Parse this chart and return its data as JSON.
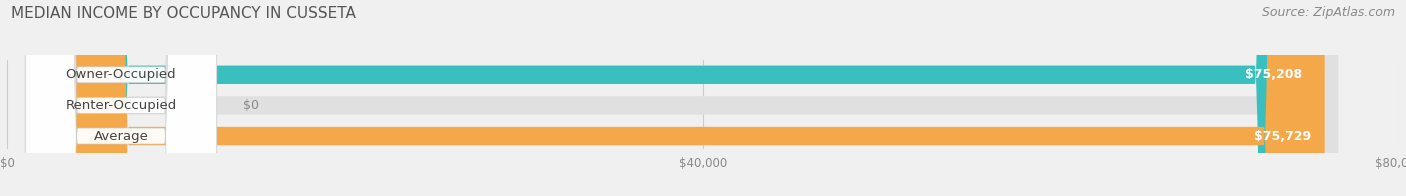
{
  "title": "MEDIAN INCOME BY OCCUPANCY IN CUSSETA",
  "source": "Source: ZipAtlas.com",
  "categories": [
    "Owner-Occupied",
    "Renter-Occupied",
    "Average"
  ],
  "values": [
    75208,
    0,
    75729
  ],
  "bar_colors": [
    "#3abfbf",
    "#c4a0d4",
    "#f5a84a"
  ],
  "bar_labels": [
    "$75,208",
    "$0",
    "$75,729"
  ],
  "xlim": [
    0,
    80000
  ],
  "xticks": [
    0,
    40000,
    80000
  ],
  "xtick_labels": [
    "$0",
    "$40,000",
    "$80,000"
  ],
  "bg_color": "#f0f0f0",
  "bar_bg_color": "#e0e0e0",
  "title_color": "#555555",
  "label_font_size": 9.5,
  "value_font_size": 9,
  "title_font_size": 11,
  "source_font_size": 9
}
